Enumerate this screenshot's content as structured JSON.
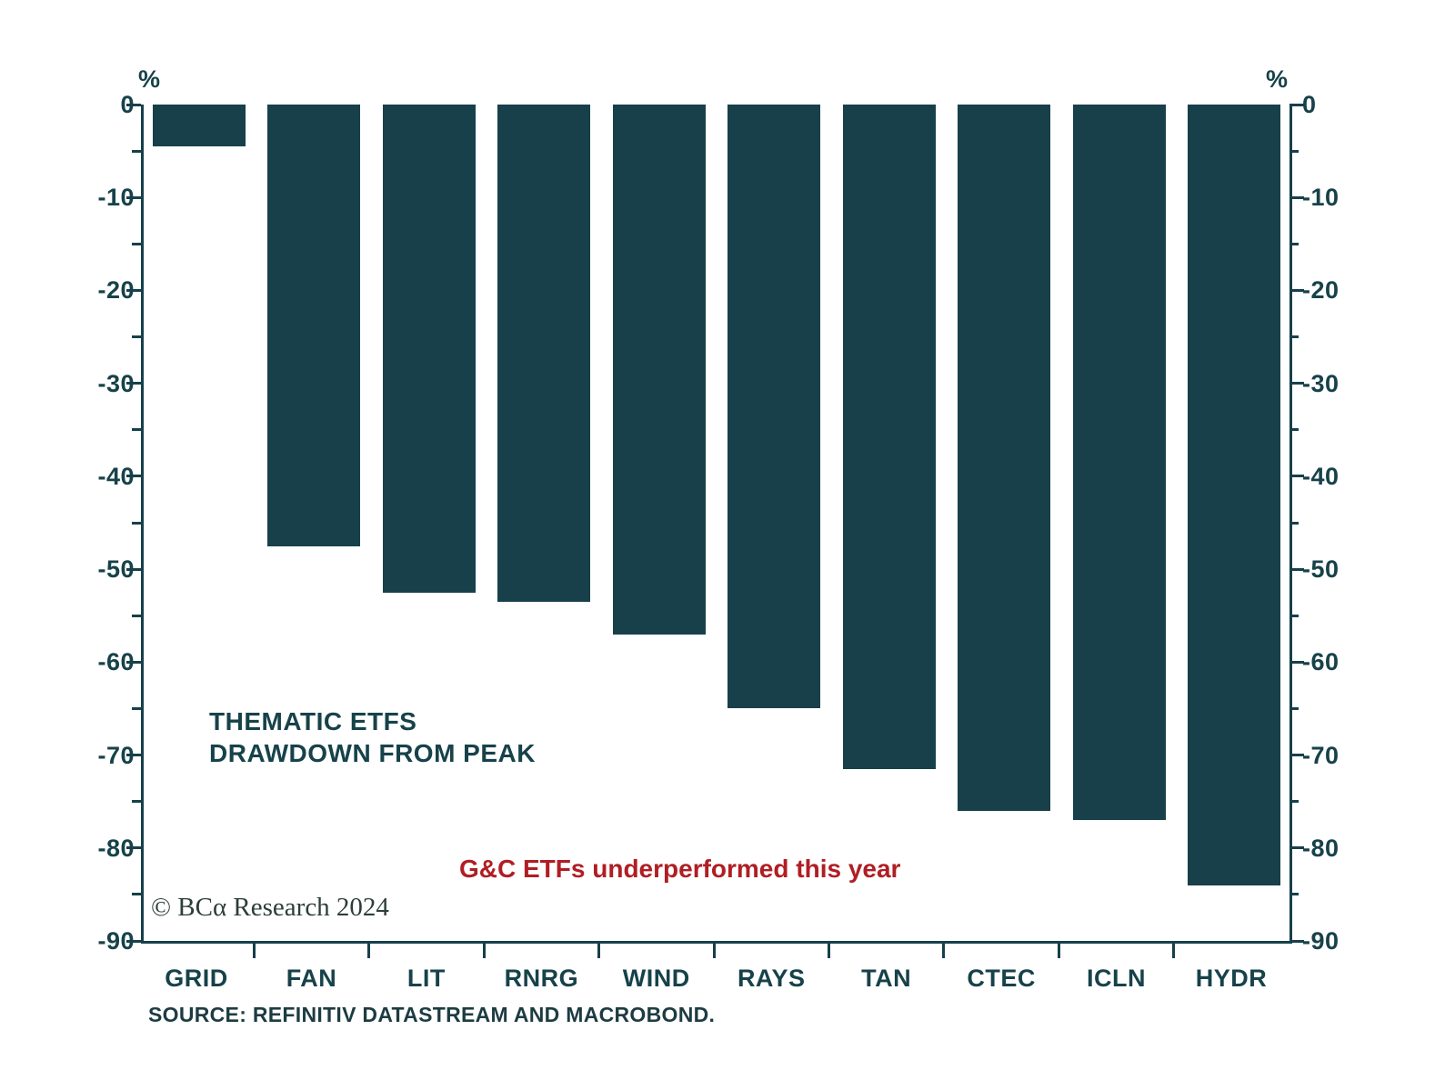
{
  "chart_data": {
    "type": "bar",
    "categories": [
      "GRID",
      "FAN",
      "LIT",
      "RNRG",
      "WIND",
      "RAYS",
      "TAN",
      "CTEC",
      "ICLN",
      "HYDR"
    ],
    "values": [
      -4.5,
      -47.5,
      -52.5,
      -53.5,
      -57,
      -65,
      -71.5,
      -76,
      -77,
      -84
    ],
    "title": "THEMATIC ETFS DRAWDOWN FROM PEAK",
    "title_lines": [
      "THEMATIC ETFS",
      "DRAWDOWN FROM PEAK"
    ],
    "annotation": "G&C ETFs underperformed this year",
    "ylabel_left": "%",
    "ylabel_right": "%",
    "ylim": [
      -90,
      0
    ],
    "yticks": [
      0,
      -10,
      -20,
      -30,
      -40,
      -50,
      -60,
      -70,
      -80,
      -90
    ],
    "yticks_minor": [
      -5,
      -15,
      -25,
      -35,
      -45,
      -55,
      -65,
      -75,
      -85
    ],
    "grid": false,
    "legend": "none",
    "bar_color": "#17404a",
    "axis_color": "#17404a",
    "annotation_color": "#b01e24"
  },
  "branding": {
    "copyright": "© BCα Research 2024"
  },
  "footer": {
    "source": "SOURCE: REFINITIV DATASTREAM AND MACROBOND."
  }
}
